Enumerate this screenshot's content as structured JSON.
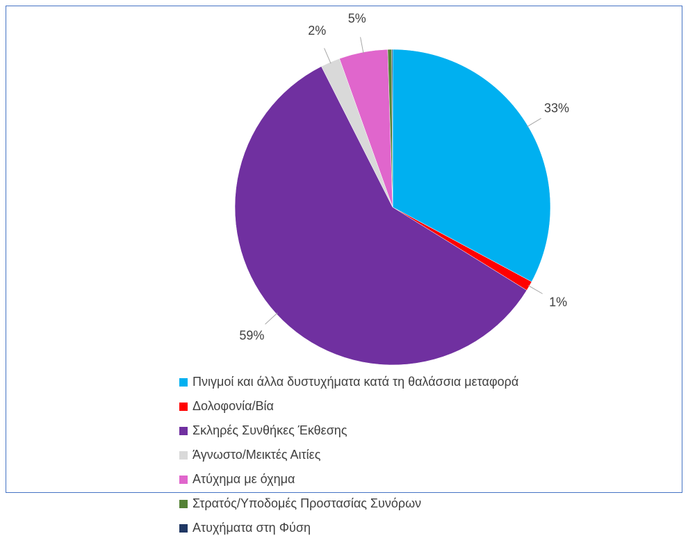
{
  "chart_data": {
    "type": "pie",
    "categories": [
      "Πνιγμοί και άλλα δυστυχήματα κατά τη θαλάσσια μεταφορά",
      "Δολοφονία/Βία",
      "Σκληρές Συνθήκες Έκθεσης",
      "Άγνωστο/Μεικτές Αιτίες",
      "Ατύχημα με όχημα",
      "Στρατός/Υποδομές Προστασίας Συνόρων",
      "Ατυχήματα στη Φύση"
    ],
    "values": [
      33,
      1,
      59,
      2,
      5,
      0.4,
      0.1
    ],
    "value_labels": [
      "33%",
      "1%",
      "59%",
      "2%",
      "5%",
      null,
      null
    ],
    "colors": [
      "#00b0f0",
      "#ff0000",
      "#7030a0",
      "#d9d9d9",
      "#e066cc",
      "#548235",
      "#203864"
    ],
    "legend": "bottom"
  }
}
